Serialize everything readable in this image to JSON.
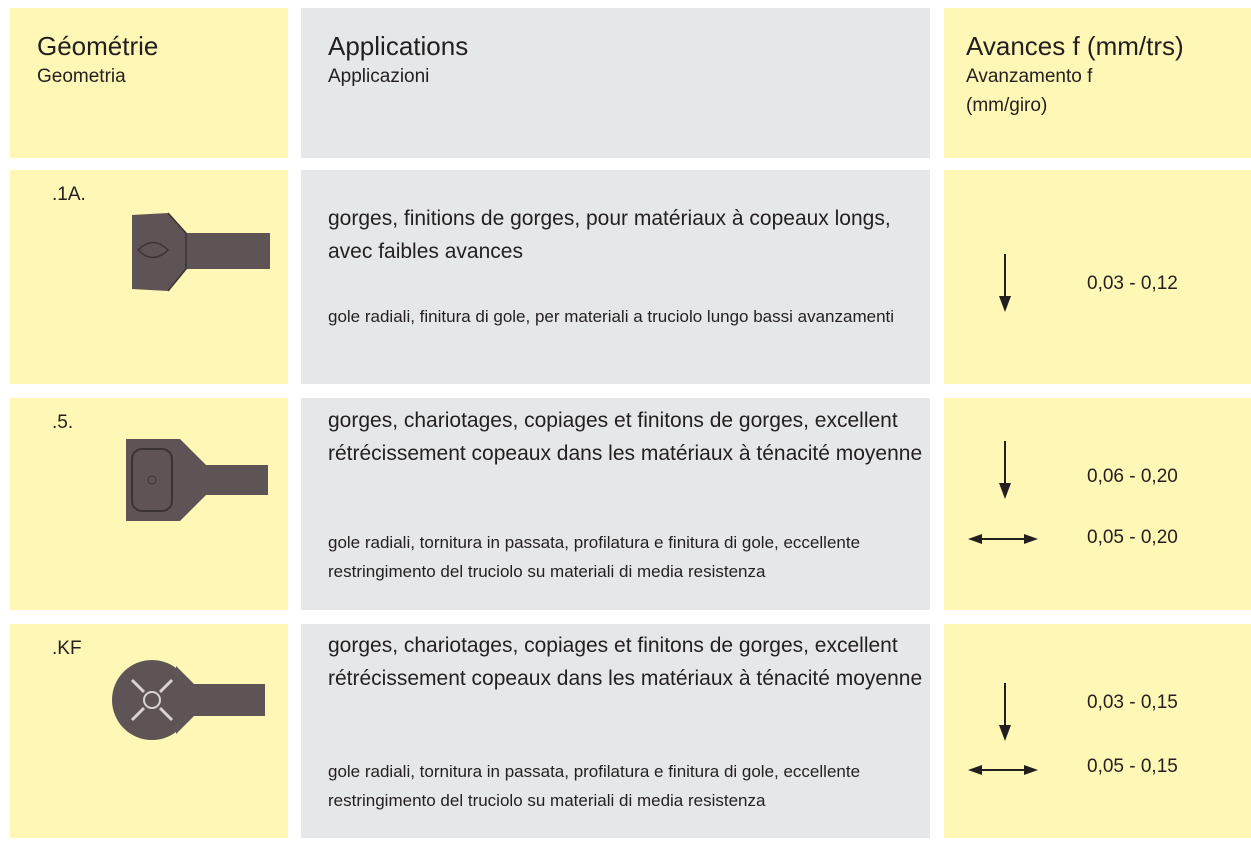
{
  "header": {
    "geometry": {
      "fr": "Géométrie",
      "it": "Geometria"
    },
    "applications": {
      "fr": "Applications",
      "it": "Applicazioni"
    },
    "feeds": {
      "fr": "Avances f (mm/trs)",
      "it": "Avanzamento f (mm/giro)"
    }
  },
  "rows": [
    {
      "code": ".1A.",
      "fr": "gorges, finitions de gorges, pour matériaux à copeaux longs, avec faibles avances",
      "it": "gole radiali, finitura di gole, per materiali a truciolo lungo bassi avanzamenti",
      "feeds": [
        "0,03 - 0,12"
      ]
    },
    {
      "code": ".5.",
      "fr": "gorges, chariotages, copiages et finitons de gorges, excellent rétrécissement copeaux dans les matériaux à ténacité moyenne",
      "it": "gole radiali, tornitura in passata, profilatura e finitura di gole, eccellente restringimento del truciolo su materiali di media resistenza",
      "feeds": [
        "0,06 - 0,20",
        "0,05 - 0,20"
      ]
    },
    {
      "code": ".KF",
      "fr": "gorges, chariotages, copiages et finitons de gorges, excellent rétrécissement copeaux dans les matériaux à ténacité moyenne",
      "it": "gole radiali, tornitura in passata, profilatura e finitura di gole, eccellente restringimento del truciolo su materiali di media resistenza",
      "feeds": [
        "0,03 - 0,15",
        "0,05 - 0,15"
      ]
    }
  ]
}
